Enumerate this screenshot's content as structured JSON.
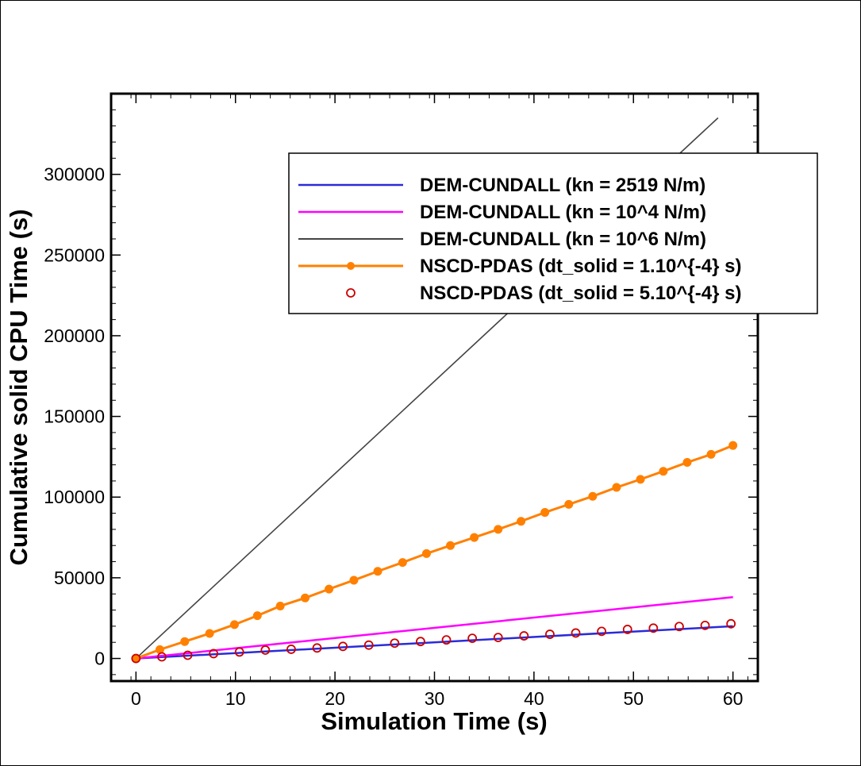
{
  "chart_data": {
    "type": "line",
    "xlabel": "Simulation Time (s)",
    "ylabel": "Cumulative solid CPU Time (s)",
    "xlim": [
      -2.5,
      62.5
    ],
    "ylim": [
      -14000,
      350000
    ],
    "xticks": [
      0,
      10,
      20,
      30,
      40,
      50,
      60
    ],
    "yticks": [
      0,
      50000,
      100000,
      150000,
      200000,
      250000,
      300000
    ],
    "grid": false,
    "legend_position": "top-right",
    "series": [
      {
        "name": "DEM-CUNDALL (kn = 2519 N/m)",
        "color": "#2b2bd9",
        "style": "line",
        "points": [
          [
            0,
            0
          ],
          [
            60,
            20000
          ]
        ]
      },
      {
        "name": "DEM-CUNDALL (kn = 10^4 N/m)",
        "color": "#ff00ff",
        "style": "line",
        "points": [
          [
            0,
            0
          ],
          [
            60,
            38000
          ]
        ]
      },
      {
        "name": "DEM-CUNDALL (kn = 10^6 N/m)",
        "color": "#444444",
        "style": "line",
        "points": [
          [
            0,
            0
          ],
          [
            58.5,
            335000
          ]
        ]
      },
      {
        "name": "NSCD-PDAS (dt_solid = 1.10^{-4} s)",
        "color": "#ff8000",
        "style": "line-marker",
        "points": [
          [
            0,
            0
          ],
          [
            2.4,
            5500
          ],
          [
            4.9,
            10500
          ],
          [
            7.4,
            15500
          ],
          [
            9.9,
            21000
          ],
          [
            12.2,
            26500
          ],
          [
            14.5,
            32500
          ],
          [
            17,
            37500
          ],
          [
            19.4,
            43000
          ],
          [
            21.9,
            48500
          ],
          [
            24.3,
            54000
          ],
          [
            26.8,
            59500
          ],
          [
            29.2,
            65000
          ],
          [
            31.6,
            70000
          ],
          [
            34,
            75000
          ],
          [
            36.4,
            80000
          ],
          [
            38.7,
            85000
          ],
          [
            41.1,
            90500
          ],
          [
            43.5,
            95500
          ],
          [
            45.9,
            100500
          ],
          [
            48.3,
            106000
          ],
          [
            50.7,
            111000
          ],
          [
            53,
            116000
          ],
          [
            55.4,
            121500
          ],
          [
            57.8,
            126500
          ],
          [
            60,
            132000
          ]
        ]
      },
      {
        "name": "NSCD-PDAS (dt_solid = 5.10^{-4} s)",
        "color": "#cc0000",
        "style": "marker",
        "points": [
          [
            0,
            0
          ],
          [
            2.6,
            1000
          ],
          [
            5.2,
            2000
          ],
          [
            7.8,
            3000
          ],
          [
            10.4,
            4000
          ],
          [
            13,
            5200
          ],
          [
            15.6,
            5700
          ],
          [
            18.2,
            6500
          ],
          [
            20.8,
            7500
          ],
          [
            23.4,
            8300
          ],
          [
            26,
            9500
          ],
          [
            28.6,
            10500
          ],
          [
            31.2,
            11500
          ],
          [
            33.8,
            12500
          ],
          [
            36.4,
            13000
          ],
          [
            39,
            14000
          ],
          [
            41.6,
            15000
          ],
          [
            44.2,
            15800
          ],
          [
            46.8,
            16800
          ],
          [
            49.4,
            18000
          ],
          [
            52,
            18800
          ],
          [
            54.6,
            19800
          ],
          [
            57.2,
            20500
          ],
          [
            59.8,
            21500
          ]
        ]
      }
    ]
  }
}
